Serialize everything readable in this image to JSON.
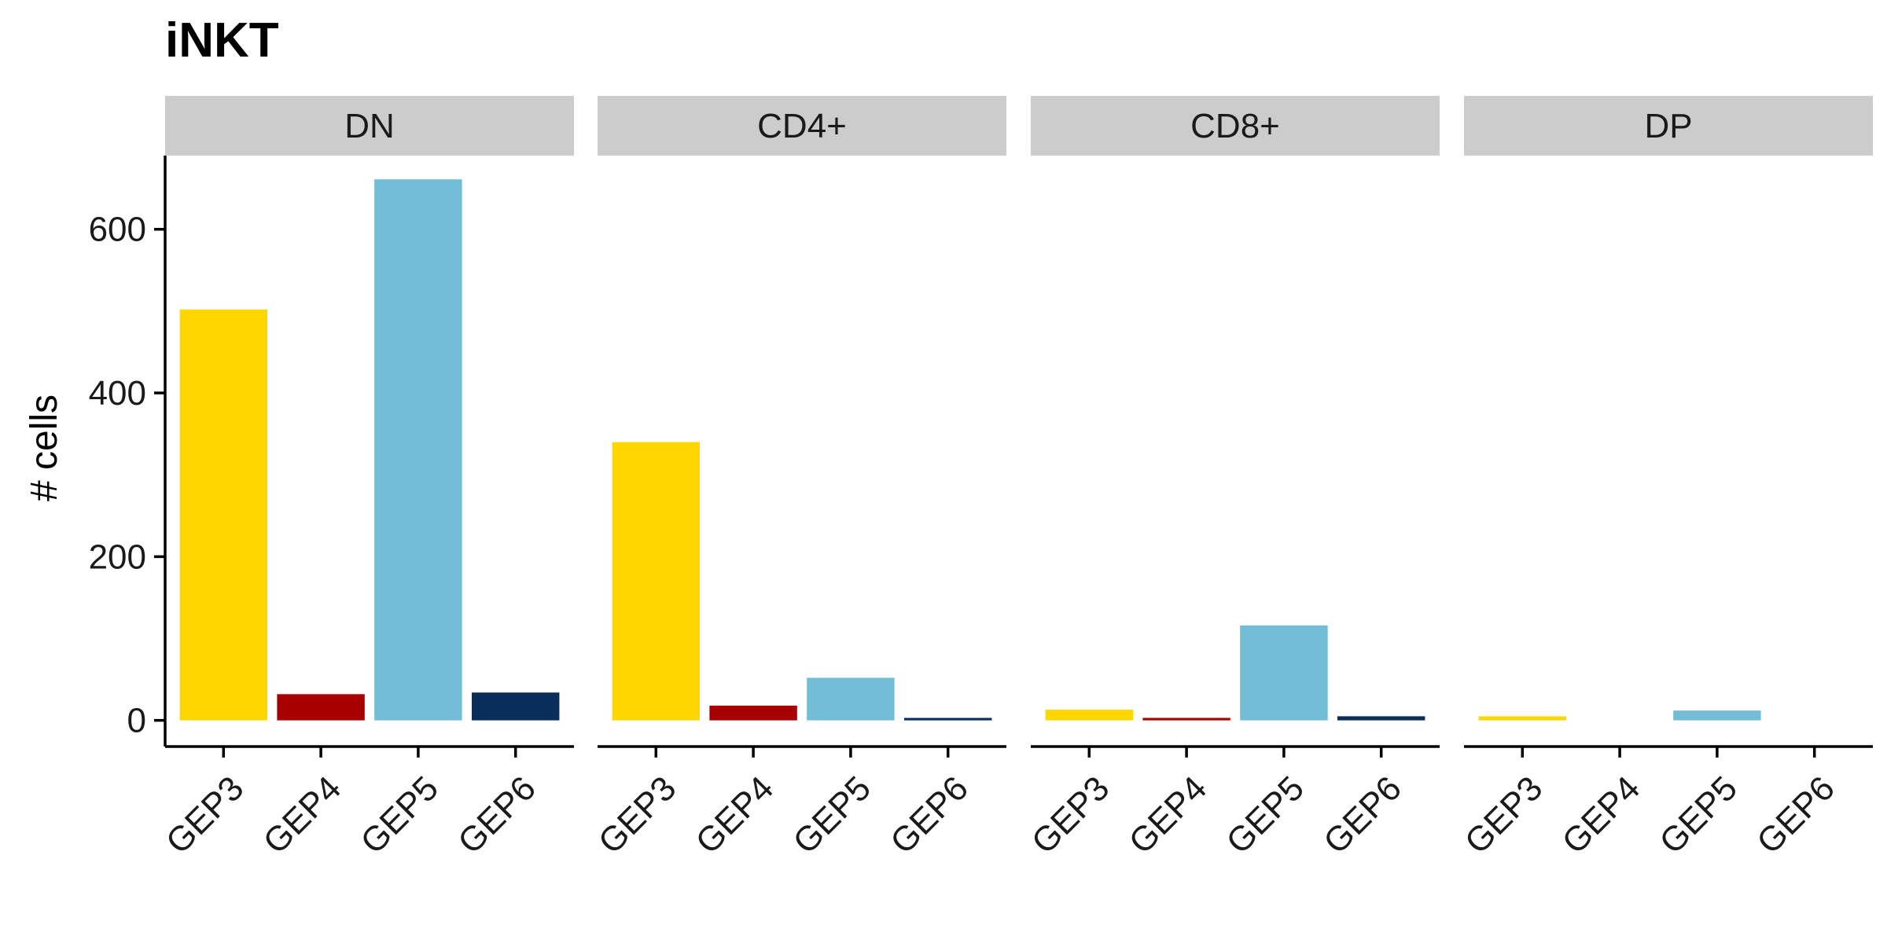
{
  "chart_data": {
    "type": "bar",
    "title": "iNKT",
    "ylabel": "# cells",
    "xlabel": "",
    "ylim": [
      -32,
      690
    ],
    "yticks": [
      0,
      200,
      400,
      600
    ],
    "categories": [
      "GEP3",
      "GEP4",
      "GEP5",
      "GEP6"
    ],
    "colors": {
      "GEP3": "#FFD700",
      "GEP4": "#A80000",
      "GEP5": "#74BDD6",
      "GEP6": "#0A2E5A"
    },
    "strip_color": "#CCCCCC",
    "grid": false,
    "legend": "none",
    "facets": [
      {
        "name": "DN",
        "values": [
          502,
          32,
          661,
          34
        ]
      },
      {
        "name": "CD4+",
        "values": [
          340,
          18,
          52,
          3
        ]
      },
      {
        "name": "CD8+",
        "values": [
          13,
          3,
          116,
          5
        ]
      },
      {
        "name": "DP",
        "values": [
          5,
          0,
          12,
          0
        ]
      }
    ]
  }
}
